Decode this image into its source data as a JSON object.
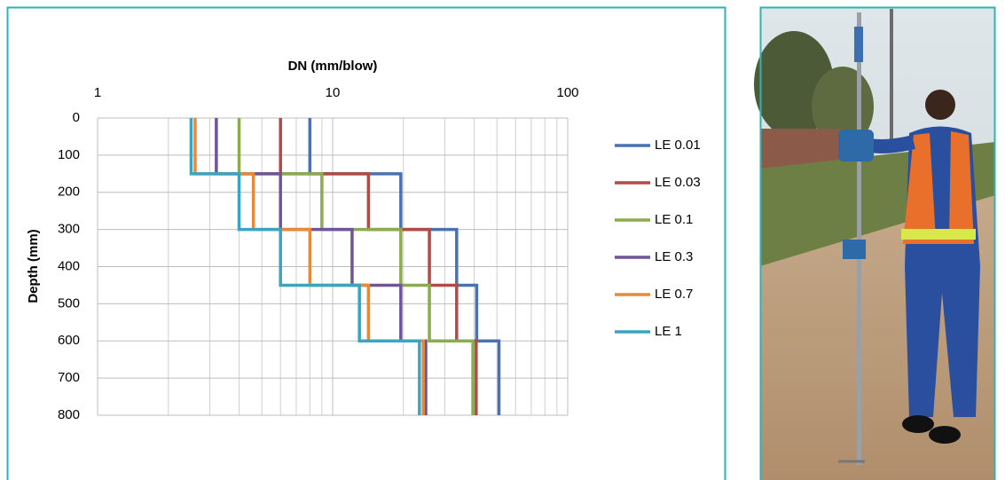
{
  "chart_data": {
    "type": "line",
    "title": "DN (mm/blow)",
    "y_label": "Depth (mm)",
    "xscale": "log",
    "y_inverted": true,
    "grid": true,
    "legend": "right",
    "xlim": [
      1,
      100
    ],
    "xticks": [
      1,
      10,
      100
    ],
    "ylim": [
      0,
      800
    ],
    "yticks": [
      0,
      100,
      200,
      300,
      400,
      500,
      600,
      700,
      800
    ],
    "y": [
      0,
      150,
      150,
      300,
      300,
      450,
      450,
      600,
      600,
      800
    ],
    "series": [
      {
        "name": "LE 0.01",
        "color": "#4a72b0",
        "values": [
          8,
          8,
          19.5,
          19.5,
          33.7,
          33.7,
          41,
          41,
          51,
          51
        ]
      },
      {
        "name": "LE 0.03",
        "color": "#b24a46",
        "values": [
          6,
          6,
          14.2,
          14.2,
          25.8,
          25.8,
          33.7,
          33.7,
          40.8,
          40.8
        ]
      },
      {
        "name": "LE 0.1",
        "color": "#8aac4f",
        "values": [
          4,
          4,
          9,
          9,
          19.5,
          19.5,
          25.8,
          25.8,
          39.5,
          39.5
        ]
      },
      {
        "name": "LE 0.3",
        "color": "#6e5597",
        "values": [
          3.2,
          3.2,
          6,
          6,
          12.1,
          12.1,
          19.5,
          19.5,
          24.9,
          24.9
        ]
      },
      {
        "name": "LE 0.7",
        "color": "#e58a3a",
        "values": [
          2.6,
          2.6,
          4.6,
          4.6,
          8,
          8,
          14.2,
          14.2,
          24.3,
          24.3
        ]
      },
      {
        "name": "LE 1",
        "color": "#3ba4c0",
        "values": [
          2.5,
          2.5,
          4,
          4,
          6,
          6,
          13,
          13,
          23.4,
          23.4
        ]
      }
    ]
  }
}
